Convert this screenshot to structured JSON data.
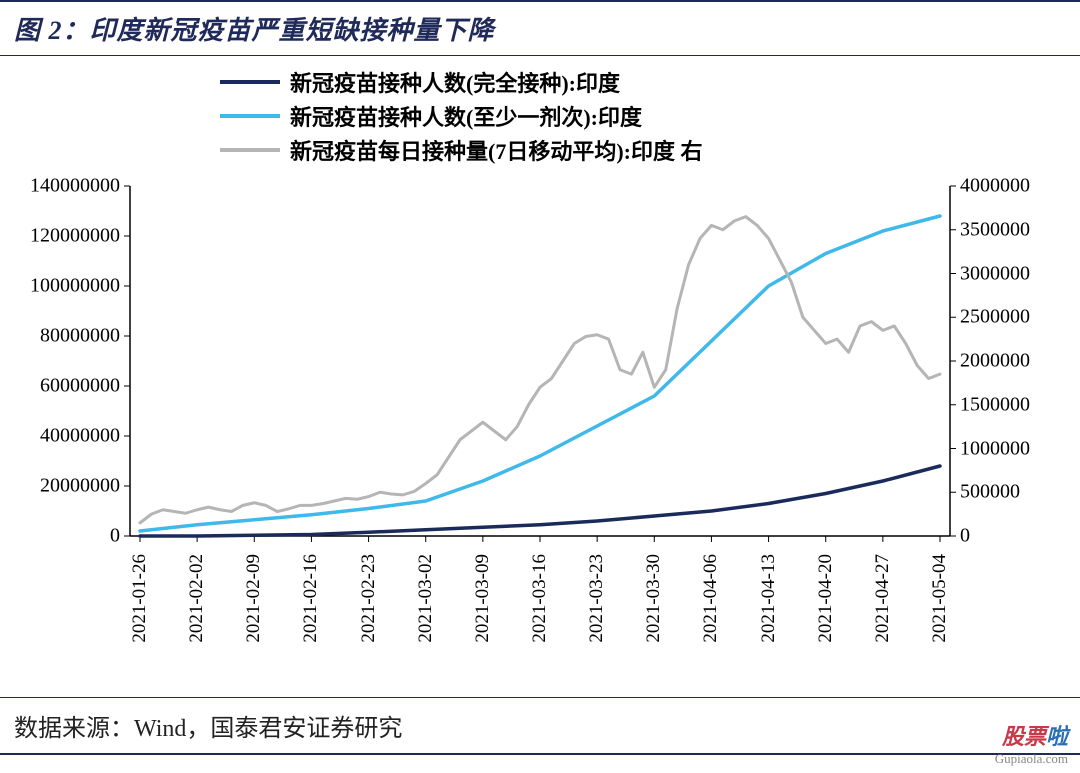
{
  "title": "图 2：印度新冠疫苗严重短缺接种量下降",
  "source": "数据来源：Wind，国泰君安证券研究",
  "watermark": {
    "brand_cn": "股票",
    "brand_suffix": "啦",
    "url": "Gupiaola.com"
  },
  "chart": {
    "type": "line",
    "background_color": "#ffffff",
    "title_color": "#1f2a5a",
    "title_fontsize": 26,
    "legend_fontsize": 22,
    "axis_fontsize": 20,
    "x_labels": [
      "2021-01-26",
      "2021-02-02",
      "2021-02-09",
      "2021-02-16",
      "2021-02-23",
      "2021-03-02",
      "2021-03-09",
      "2021-03-16",
      "2021-03-23",
      "2021-03-30",
      "2021-04-06",
      "2021-04-13",
      "2021-04-20",
      "2021-04-27",
      "2021-05-04"
    ],
    "y_left": {
      "min": 0,
      "max": 140000000,
      "step": 20000000
    },
    "y_right": {
      "min": 0,
      "max": 4000000,
      "step": 500000
    },
    "series": [
      {
        "name": "新冠疫苗接种人数(完全接种):印度",
        "color": "#1a2a5a",
        "width": 3.5,
        "axis": "left",
        "values": [
          0,
          0,
          300000,
          600000,
          1500000,
          2500000,
          3500000,
          4500000,
          6000000,
          8000000,
          10000000,
          13000000,
          17000000,
          22000000,
          28000000
        ]
      },
      {
        "name": "新冠疫苗接种人数(至少一剂次):印度",
        "color": "#3fb8ea",
        "width": 3.5,
        "axis": "left",
        "values": [
          2000000,
          4500000,
          6500000,
          8500000,
          11000000,
          14000000,
          22000000,
          32000000,
          44000000,
          56000000,
          78000000,
          100000000,
          113000000,
          122000000,
          128000000
        ]
      },
      {
        "name": "新冠疫苗每日接种量(7日移动平均):印度 右",
        "color": "#b5b5b5",
        "width": 3,
        "axis": "right",
        "values_fine": [
          150000,
          250000,
          300000,
          280000,
          260000,
          300000,
          330000,
          300000,
          280000,
          350000,
          380000,
          350000,
          280000,
          310000,
          350000,
          350000,
          370000,
          400000,
          430000,
          420000,
          450000,
          500000,
          480000,
          470000,
          510000,
          600000,
          700000,
          900000,
          1100000,
          1200000,
          1300000,
          1200000,
          1100000,
          1250000,
          1500000,
          1700000,
          1800000,
          2000000,
          2200000,
          2280000,
          2300000,
          2250000,
          1900000,
          1850000,
          2100000,
          1700000,
          1900000,
          2600000,
          3100000,
          3400000,
          3550000,
          3500000,
          3600000,
          3650000,
          3550000,
          3400000,
          3150000,
          2900000,
          2500000,
          2350000,
          2200000,
          2250000,
          2100000,
          2400000,
          2450000,
          2350000,
          2400000,
          2200000,
          1950000,
          1800000,
          1850000
        ]
      }
    ]
  }
}
